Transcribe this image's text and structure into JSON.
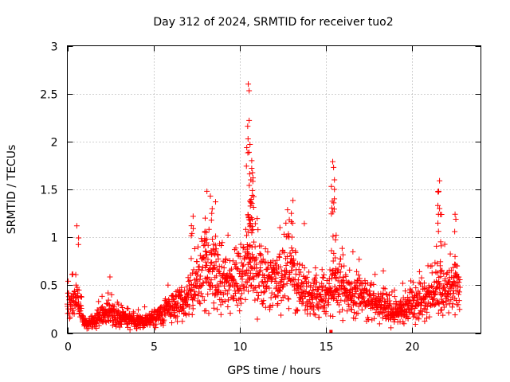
{
  "chart_data": {
    "type": "scatter",
    "title": "Day 312 of 2024, SRMTID for receiver tuo2",
    "xlabel": "GPS time / hours",
    "ylabel": "SRMTID / TECUs",
    "xlim": [
      0,
      24
    ],
    "ylim": [
      0,
      3
    ],
    "x_ticks": [
      0,
      5,
      10,
      15,
      20
    ],
    "y_ticks": [
      0,
      0.5,
      1,
      1.5,
      2,
      2.5,
      3
    ],
    "grid": true,
    "marker": "+",
    "marker_color": "#ff0000",
    "series": [
      {
        "name": "tuo2",
        "baseline_profile": {
          "x": [
            0,
            0.3,
            0.6,
            1.0,
            1.5,
            2.0,
            2.5,
            3.0,
            3.5,
            4.0,
            4.5,
            5.0,
            5.5,
            6.0,
            6.5,
            7.0,
            7.5,
            8.0,
            8.5,
            9.0,
            9.5,
            10.0,
            10.5,
            11.0,
            11.5,
            12.0,
            12.5,
            13.0,
            13.5,
            14.0,
            14.5,
            15.0,
            15.5,
            16.0,
            16.5,
            17.0,
            17.5,
            18.0,
            18.5,
            19.0,
            19.5,
            20.0,
            20.5,
            21.0,
            21.5,
            22.0,
            22.5,
            22.8
          ],
          "y": [
            0.3,
            0.3,
            0.35,
            0.1,
            0.12,
            0.18,
            0.22,
            0.18,
            0.15,
            0.12,
            0.12,
            0.15,
            0.2,
            0.25,
            0.3,
            0.35,
            0.55,
            0.7,
            0.6,
            0.5,
            0.5,
            0.55,
            0.7,
            0.65,
            0.55,
            0.55,
            0.6,
            0.65,
            0.45,
            0.45,
            0.4,
            0.4,
            0.5,
            0.5,
            0.4,
            0.35,
            0.35,
            0.3,
            0.25,
            0.22,
            0.25,
            0.3,
            0.35,
            0.4,
            0.45,
            0.45,
            0.5,
            0.55
          ]
        },
        "peaks": [
          {
            "x": 0.55,
            "y": 1.12
          },
          {
            "x": 8.1,
            "y": 1.48
          },
          {
            "x": 8.3,
            "y": 1.43
          },
          {
            "x": 10.5,
            "y": 2.6
          },
          {
            "x": 10.55,
            "y": 2.53
          },
          {
            "x": 10.55,
            "y": 2.22
          },
          {
            "x": 10.6,
            "y": 1.97
          },
          {
            "x": 10.7,
            "y": 1.8
          },
          {
            "x": 10.7,
            "y": 1.72
          },
          {
            "x": 10.65,
            "y": 1.6
          },
          {
            "x": 10.6,
            "y": 1.38
          },
          {
            "x": 13.0,
            "y": 1.25
          },
          {
            "x": 15.4,
            "y": 1.79
          },
          {
            "x": 15.45,
            "y": 1.73
          },
          {
            "x": 15.5,
            "y": 1.6
          },
          {
            "x": 15.5,
            "y": 1.5
          },
          {
            "x": 21.6,
            "y": 1.59
          },
          {
            "x": 21.55,
            "y": 1.48
          },
          {
            "x": 21.6,
            "y": 1.3
          },
          {
            "x": 22.5,
            "y": 1.24
          },
          {
            "x": 7.3,
            "y": 1.22
          },
          {
            "x": 8.6,
            "y": 1.37
          },
          {
            "x": 8.0,
            "y": 1.2
          }
        ]
      }
    ]
  }
}
